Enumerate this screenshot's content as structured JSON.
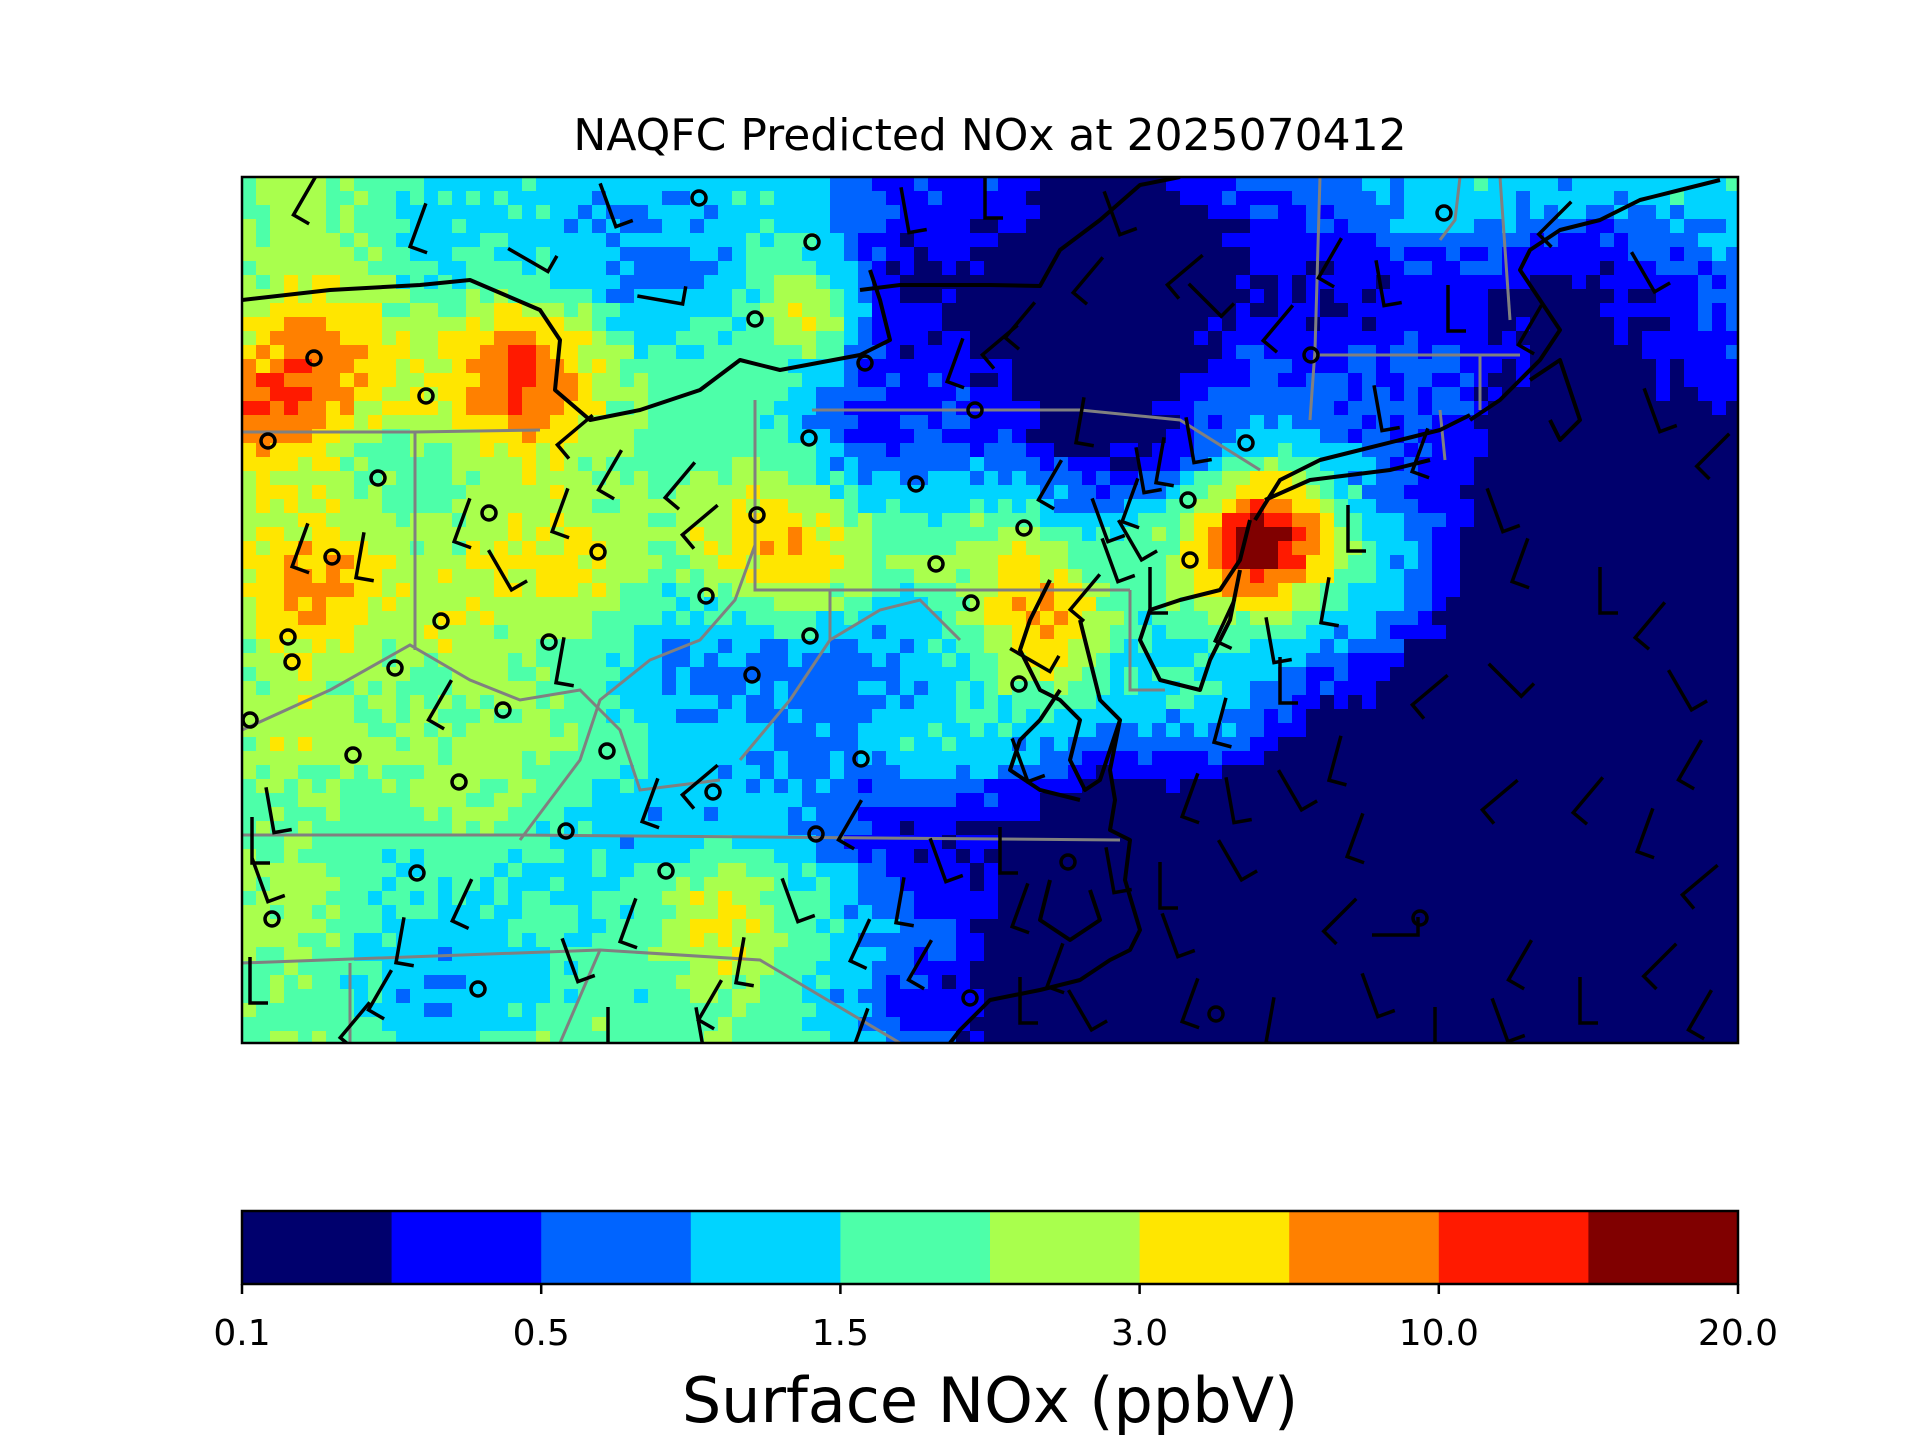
{
  "title": "NAQFC Predicted NOx at 2025070412",
  "colorbar": {
    "label": "Surface NOx (ppbV)",
    "tick_labels": [
      "0.1",
      "0.5",
      "1.5",
      "3.0",
      "10.0",
      "20.0"
    ],
    "colors": [
      "#00006d",
      "#0000ff",
      "#0064ff",
      "#00d4ff",
      "#4dffa9",
      "#a9ff4d",
      "#ffe600",
      "#ff8000",
      "#ff1a00",
      "#800000"
    ]
  },
  "map": {
    "field": "Surface NOx",
    "overlays": [
      "wind-barbs",
      "monitor-sites",
      "state-boundaries",
      "coastlines"
    ]
  }
}
